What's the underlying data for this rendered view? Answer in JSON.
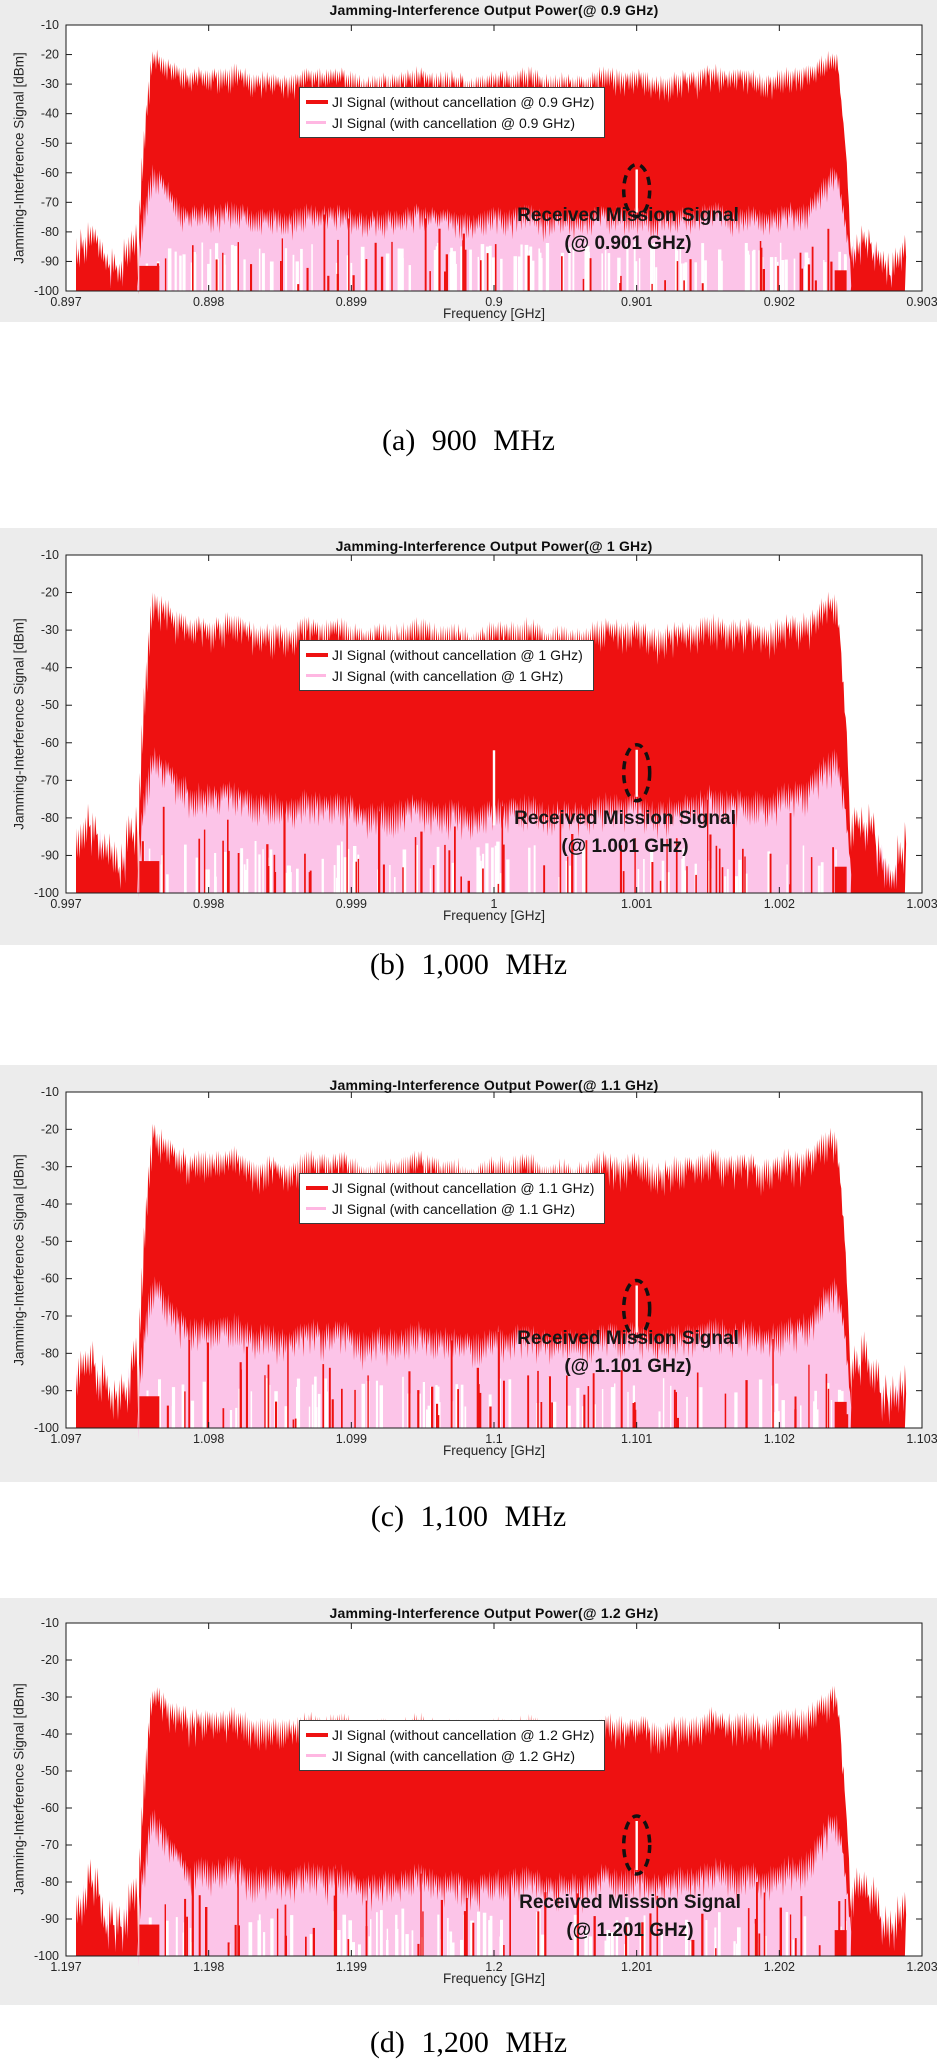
{
  "chart_data": {
    "type": "area",
    "description": "Jamming-interference output power spectra before and after cancellation at four carrier frequencies",
    "y_tick_labels": [
      "-10",
      "-20",
      "-30",
      "-40",
      "-50",
      "-60",
      "-70",
      "-80",
      "-90",
      "-100"
    ],
    "colors": {
      "ji_red": "#ee1111",
      "ji_pink": "#fcc4e8",
      "figure_bg": "#ececec",
      "axis_text": "#262626",
      "plot_bg": "#ffffff"
    },
    "figures": [
      {
        "panel": "a",
        "title": "Jamming-Interference Output Power(@ 0.9 GHz)",
        "caption": "(a) 900 MHz",
        "xlabel": "Frequency [GHz]",
        "ylabel": "Jamming-Interference Signal [dBm]",
        "center_ghz": 0.9,
        "mission_freq_ghz": 0.901,
        "xlim": [
          0.897,
          0.903
        ],
        "ylim": [
          -100,
          -10
        ],
        "x_tick_labels": [
          "0.897",
          "0.898",
          "0.899",
          "0.9",
          "0.901",
          "0.902",
          "0.903"
        ],
        "legend": [
          {
            "label": "JI Signal (without cancellation @ 0.9 GHz)",
            "color": "#ee1111"
          },
          {
            "label": "JI Signal (with cancellation @ 0.9 GHz)",
            "color": "#ffb7e2"
          }
        ],
        "annotation": {
          "line1": "Received Mission Signal",
          "line2": "(@ 0.901 GHz)"
        },
        "series": [
          {
            "name": "JI Signal (without cancellation @ 0.9 GHz)",
            "band_ghz": [
              0.8975,
              0.9025
            ],
            "edge_peak_dbm": -19,
            "flat_top_dbm": -25
          },
          {
            "name": "JI Signal (with cancellation @ 0.9 GHz)",
            "band_ghz": [
              0.8975,
              0.9025
            ],
            "edge_peak_dbm": -58,
            "flat_top_dbm": -71
          }
        ]
      },
      {
        "panel": "b",
        "title": "Jamming-Interference Output Power(@ 1 GHz)",
        "caption": "(b) 1,000 MHz",
        "xlabel": "Frequency [GHz]",
        "ylabel": "Jamming-Interference Signal [dBm]",
        "center_ghz": 1.0,
        "mission_freq_ghz": 1.001,
        "xlim": [
          0.997,
          1.003
        ],
        "ylim": [
          -100,
          -10
        ],
        "x_tick_labels": [
          "0.997",
          "0.998",
          "0.999",
          "1",
          "1.001",
          "1.002",
          "1.003"
        ],
        "legend": [
          {
            "label": "JI Signal (without cancellation @ 1 GHz)",
            "color": "#ee1111"
          },
          {
            "label": "JI Signal (with cancellation @ 1 GHz)",
            "color": "#ffb7e2"
          }
        ],
        "annotation": {
          "line1": "Received Mission Signal",
          "line2": "(@ 1.001 GHz)"
        },
        "series": [
          {
            "name": "JI Signal (without cancellation @ 1 GHz)",
            "band_ghz": [
              0.9975,
              1.0025
            ],
            "edge_peak_dbm": -20,
            "flat_top_dbm": -26.5
          },
          {
            "name": "JI Signal (with cancellation @ 1 GHz)",
            "band_ghz": [
              0.9975,
              1.0025
            ],
            "edge_peak_dbm": -62,
            "flat_top_dbm": -70
          }
        ]
      },
      {
        "panel": "c",
        "title": "Jamming-Interference Output Power(@ 1.1 GHz)",
        "caption": "(c) 1,100 MHz",
        "xlabel": "Frequency [GHz]",
        "ylabel": "Jamming-Interference Signal [dBm]",
        "center_ghz": 1.1,
        "mission_freq_ghz": 1.101,
        "xlim": [
          1.097,
          1.103
        ],
        "ylim": [
          -100,
          -10
        ],
        "x_tick_labels": [
          "1.097",
          "1.098",
          "1.099",
          "1.1",
          "1.101",
          "1.102",
          "1.103"
        ],
        "legend": [
          {
            "label": "JI Signal (without cancellation @ 1.1 GHz)",
            "color": "#ee1111"
          },
          {
            "label": "JI Signal (with cancellation @ 1.1 GHz)",
            "color": "#ffb7e2"
          }
        ],
        "annotation": {
          "line1": "Received Mission Signal",
          "line2": "(@ 1.101 GHz)"
        },
        "series": [
          {
            "name": "JI Signal (without cancellation @ 1.1 GHz)",
            "band_ghz": [
              1.0975,
              1.1025
            ],
            "edge_peak_dbm": -19.5,
            "flat_top_dbm": -26
          },
          {
            "name": "JI Signal (with cancellation @ 1.1 GHz)",
            "band_ghz": [
              1.0975,
              1.1025
            ],
            "edge_peak_dbm": -60,
            "flat_top_dbm": -70
          }
        ]
      },
      {
        "panel": "d",
        "title": "Jamming-Interference Output Power(@ 1.2 GHz)",
        "caption": "(d) 1,200 MHz",
        "xlabel": "Frequency [GHz]",
        "ylabel": "Jamming-Interference Signal [dBm]",
        "center_ghz": 1.2,
        "mission_freq_ghz": 1.201,
        "xlim": [
          1.197,
          1.203
        ],
        "ylim": [
          -100,
          -10
        ],
        "x_tick_labels": [
          "1.197",
          "1.198",
          "1.199",
          "1.2",
          "1.201",
          "1.202",
          "1.203"
        ],
        "legend": [
          {
            "label": "JI Signal (without cancellation @ 1.2 GHz)",
            "color": "#ee1111"
          },
          {
            "label": "JI Signal (with cancellation @ 1.2 GHz)",
            "color": "#ffb7e2"
          }
        ],
        "annotation": {
          "line1": "Received Mission Signal",
          "line2": "(@ 1.201 GHz)"
        },
        "series": [
          {
            "name": "JI Signal (without cancellation @ 1.2 GHz)",
            "band_ghz": [
              1.1975,
              1.2025
            ],
            "edge_peak_dbm": -28,
            "flat_top_dbm": -33
          },
          {
            "name": "JI Signal (with cancellation @ 1.2 GHz)",
            "band_ghz": [
              1.1975,
              1.2025
            ],
            "edge_peak_dbm": -61,
            "flat_top_dbm": -73
          }
        ]
      }
    ]
  }
}
